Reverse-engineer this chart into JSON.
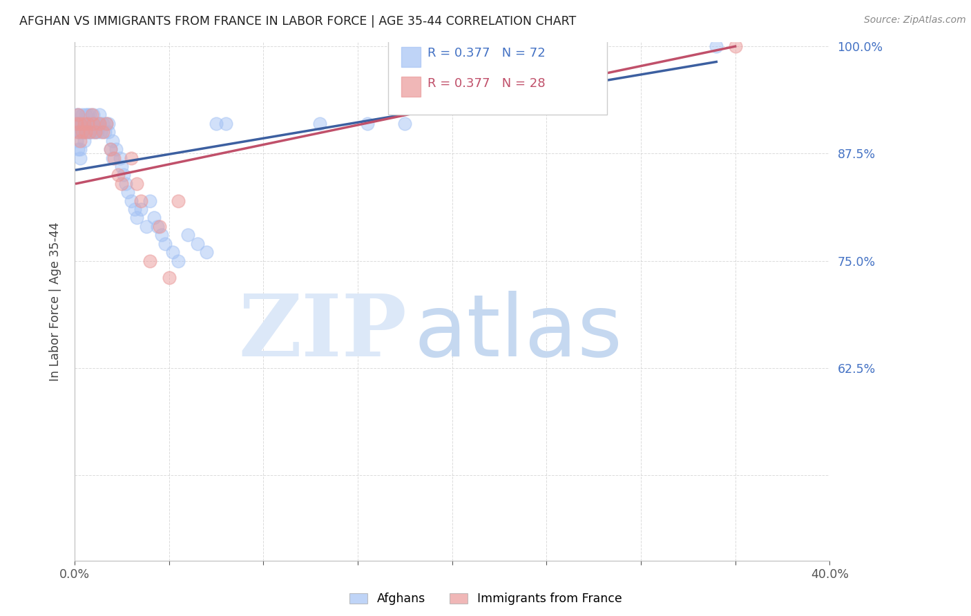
{
  "title": "AFGHAN VS IMMIGRANTS FROM FRANCE IN LABOR FORCE | AGE 35-44 CORRELATION CHART",
  "source": "Source: ZipAtlas.com",
  "ylabel": "In Labor Force | Age 35-44",
  "xlabel": "",
  "xlim": [
    0.0,
    0.4
  ],
  "ylim": [
    0.4,
    1.005
  ],
  "blue_R": 0.377,
  "blue_N": 72,
  "pink_R": 0.377,
  "pink_N": 28,
  "blue_color": "#a4c2f4",
  "pink_color": "#ea9999",
  "blue_line_color": "#3c5fa0",
  "pink_line_color": "#c0506a",
  "background_color": "#ffffff",
  "grid_color": "#cccccc",
  "watermark_color": "#dce8f8",
  "title_color": "#222222",
  "axis_label_color": "#444444",
  "ytick_color": "#4472c4",
  "xtick_color": "#555555",
  "legend_label_blue": "Afghans",
  "legend_label_pink": "Immigrants from France",
  "blue_scatter_x": [
    0.001,
    0.001,
    0.001,
    0.002,
    0.002,
    0.002,
    0.003,
    0.003,
    0.003,
    0.003,
    0.004,
    0.004,
    0.004,
    0.005,
    0.005,
    0.005,
    0.006,
    0.006,
    0.006,
    0.007,
    0.007,
    0.007,
    0.008,
    0.008,
    0.008,
    0.009,
    0.009,
    0.01,
    0.01,
    0.01,
    0.011,
    0.011,
    0.012,
    0.012,
    0.013,
    0.013,
    0.014,
    0.015,
    0.016,
    0.017,
    0.018,
    0.018,
    0.019,
    0.02,
    0.02,
    0.022,
    0.024,
    0.025,
    0.026,
    0.027,
    0.028,
    0.03,
    0.032,
    0.033,
    0.035,
    0.038,
    0.04,
    0.042,
    0.044,
    0.046,
    0.048,
    0.052,
    0.055,
    0.06,
    0.065,
    0.07,
    0.075,
    0.08,
    0.13,
    0.155,
    0.175,
    0.34
  ],
  "blue_scatter_y": [
    0.91,
    0.89,
    0.92,
    0.9,
    0.88,
    0.92,
    0.91,
    0.9,
    0.88,
    0.87,
    0.92,
    0.91,
    0.9,
    0.91,
    0.9,
    0.89,
    0.92,
    0.91,
    0.9,
    0.92,
    0.91,
    0.9,
    0.92,
    0.91,
    0.9,
    0.91,
    0.9,
    0.92,
    0.91,
    0.9,
    0.91,
    0.9,
    0.91,
    0.9,
    0.92,
    0.91,
    0.9,
    0.91,
    0.9,
    0.91,
    0.9,
    0.91,
    0.88,
    0.87,
    0.89,
    0.88,
    0.87,
    0.86,
    0.85,
    0.84,
    0.83,
    0.82,
    0.81,
    0.8,
    0.81,
    0.79,
    0.82,
    0.8,
    0.79,
    0.78,
    0.77,
    0.76,
    0.75,
    0.78,
    0.77,
    0.76,
    0.91,
    0.91,
    0.91,
    0.91,
    0.91,
    1.0
  ],
  "pink_scatter_x": [
    0.001,
    0.002,
    0.002,
    0.003,
    0.003,
    0.004,
    0.005,
    0.006,
    0.007,
    0.008,
    0.009,
    0.01,
    0.011,
    0.013,
    0.015,
    0.017,
    0.019,
    0.021,
    0.023,
    0.025,
    0.03,
    0.033,
    0.035,
    0.04,
    0.045,
    0.05,
    0.055,
    0.35
  ],
  "pink_scatter_y": [
    0.91,
    0.92,
    0.9,
    0.91,
    0.89,
    0.9,
    0.91,
    0.9,
    0.91,
    0.9,
    0.92,
    0.91,
    0.9,
    0.91,
    0.9,
    0.91,
    0.88,
    0.87,
    0.85,
    0.84,
    0.87,
    0.84,
    0.82,
    0.75,
    0.79,
    0.73,
    0.82,
    1.0
  ],
  "blue_trendline_x": [
    0.001,
    0.34
  ],
  "blue_trendline_y": [
    0.856,
    0.982
  ],
  "pink_trendline_x": [
    0.001,
    0.35
  ],
  "pink_trendline_y": [
    0.84,
    1.0
  ],
  "ytick_vals": [
    0.625,
    0.75,
    0.875,
    1.0
  ],
  "ytick_labels": [
    "62.5%",
    "75.0%",
    "87.5%",
    "100.0%"
  ],
  "xtick_vals": [
    0.0,
    0.05,
    0.1,
    0.15,
    0.2,
    0.25,
    0.3,
    0.35,
    0.4
  ],
  "scatter_size": 180,
  "scatter_alpha": 0.5,
  "scatter_linewidth": 1.2
}
